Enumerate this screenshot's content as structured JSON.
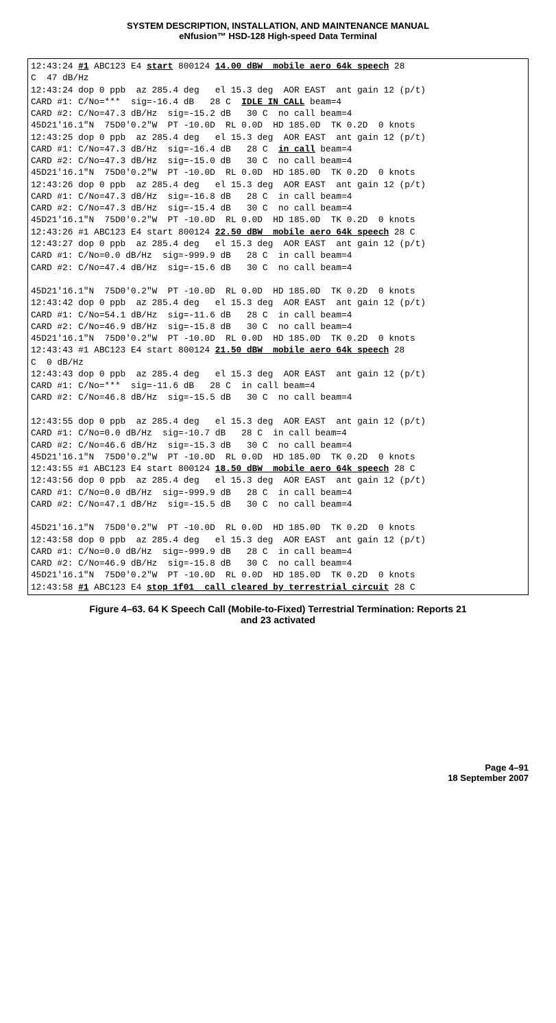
{
  "header": {
    "line1": "SYSTEM DESCRIPTION, INSTALLATION, AND MAINTENANCE MANUAL",
    "line2": "eNfusion™ HSD-128 High-speed Data Terminal"
  },
  "log": {
    "styling": {
      "font_family": "Courier New",
      "font_size_pt": 10,
      "border_color": "#000000",
      "bg_color": "#ffffff",
      "text_color": "#000000"
    },
    "lines": [
      {
        "segments": [
          {
            "t": "12:43:24 "
          },
          {
            "t": "#1",
            "style": "bu"
          },
          {
            "t": " ABC123 E4 "
          },
          {
            "t": "start",
            "style": "bu"
          },
          {
            "t": " 800124 "
          },
          {
            "t": "14.00 dBW  mobile aero 64k speech",
            "style": "bu"
          },
          {
            "t": " 28"
          }
        ]
      },
      {
        "segments": [
          {
            "t": "C  47 dB/Hz"
          }
        ]
      },
      {
        "segments": [
          {
            "t": "12:43:24 dop 0 ppb  az 285.4 deg   el 15.3 deg  AOR EAST  ant gain 12 (p/t)"
          }
        ]
      },
      {
        "segments": [
          {
            "t": "CARD #1: C/No=***  sig=-16.4 dB   28 C  "
          },
          {
            "t": "IDLE IN CALL",
            "style": "bu"
          },
          {
            "t": " beam=4"
          }
        ]
      },
      {
        "segments": [
          {
            "t": "CARD #2: C/No=47.3 dB/Hz  sig=-15.2 dB   30 C  no call beam=4"
          }
        ]
      },
      {
        "segments": [
          {
            "t": "45D21'16.1\"N  75D0'0.2\"W  PT -10.0D  RL 0.0D  HD 185.0D  TK 0.2D  0 knots"
          }
        ]
      },
      {
        "segments": [
          {
            "t": "12:43:25 dop 0 ppb  az 285.4 deg   el 15.3 deg  AOR EAST  ant gain 12 (p/t)"
          }
        ]
      },
      {
        "segments": [
          {
            "t": "CARD #1: C/No=47.3 dB/Hz  sig=-16.4 dB   28 C  "
          },
          {
            "t": "in call",
            "style": "bu"
          },
          {
            "t": " beam=4"
          }
        ]
      },
      {
        "segments": [
          {
            "t": "CARD #2: C/No=47.3 dB/Hz  sig=-15.0 dB   30 C  no call beam=4"
          }
        ]
      },
      {
        "segments": [
          {
            "t": "45D21'16.1\"N  75D0'0.2\"W  PT -10.0D  RL 0.0D  HD 185.0D  TK 0.2D  0 knots"
          }
        ]
      },
      {
        "segments": [
          {
            "t": "12:43:26 dop 0 ppb  az 285.4 deg   el 15.3 deg  AOR EAST  ant gain 12 (p/t)"
          }
        ]
      },
      {
        "segments": [
          {
            "t": "CARD #1: C/No=47.3 dB/Hz  sig=-16.8 dB   28 C  in call beam=4"
          }
        ]
      },
      {
        "segments": [
          {
            "t": "CARD #2: C/No=47.3 dB/Hz  sig=-15.4 dB   30 C  no call beam=4"
          }
        ]
      },
      {
        "segments": [
          {
            "t": "45D21'16.1\"N  75D0'0.2\"W  PT -10.0D  RL 0.0D  HD 185.0D  TK 0.2D  0 knots"
          }
        ]
      },
      {
        "segments": [
          {
            "t": "12:43:26 #1 ABC123 E4 start 800124 "
          },
          {
            "t": "22.50 dBW  mobile aero 64k speech",
            "style": "bu"
          },
          {
            "t": " 28 C"
          }
        ]
      },
      {
        "segments": [
          {
            "t": "12:43:27 dop 0 ppb  az 285.4 deg   el 15.3 deg  AOR EAST  ant gain 12 (p/t)"
          }
        ]
      },
      {
        "segments": [
          {
            "t": "CARD #1: C/No=0.0 dB/Hz  sig=-999.9 dB   28 C  in call beam=4"
          }
        ]
      },
      {
        "segments": [
          {
            "t": "CARD #2: C/No=47.4 dB/Hz  sig=-15.6 dB   30 C  no call beam=4"
          }
        ]
      },
      {
        "segments": [
          {
            "t": ""
          }
        ]
      },
      {
        "segments": [
          {
            "t": "45D21'16.1\"N  75D0'0.2\"W  PT -10.0D  RL 0.0D  HD 185.0D  TK 0.2D  0 knots"
          }
        ]
      },
      {
        "segments": [
          {
            "t": "12:43:42 dop 0 ppb  az 285.4 deg   el 15.3 deg  AOR EAST  ant gain 12 (p/t)"
          }
        ]
      },
      {
        "segments": [
          {
            "t": "CARD #1: C/No=54.1 dB/Hz  sig=-11.6 dB   28 C  in call beam=4"
          }
        ]
      },
      {
        "segments": [
          {
            "t": "CARD #2: C/No=46.9 dB/Hz  sig=-15.8 dB   30 C  no call beam=4"
          }
        ]
      },
      {
        "segments": [
          {
            "t": "45D21'16.1\"N  75D0'0.2\"W  PT -10.0D  RL 0.0D  HD 185.0D  TK 0.2D  0 knots"
          }
        ]
      },
      {
        "segments": [
          {
            "t": "12:43:43 #1 ABC123 E4 start 800124 "
          },
          {
            "t": "21.50 dBW  mobile aero 64k speech",
            "style": "bu"
          },
          {
            "t": " 28"
          }
        ]
      },
      {
        "segments": [
          {
            "t": "C  0 dB/Hz"
          }
        ]
      },
      {
        "segments": [
          {
            "t": "12:43:43 dop 0 ppb  az 285.4 deg   el 15.3 deg  AOR EAST  ant gain 12 (p/t)"
          }
        ]
      },
      {
        "segments": [
          {
            "t": "CARD #1: C/No=***  sig=-11.6 dB   28 C  in call beam=4"
          }
        ]
      },
      {
        "segments": [
          {
            "t": "CARD #2: C/No=46.8 dB/Hz  sig=-15.5 dB   30 C  no call beam=4"
          }
        ]
      },
      {
        "segments": [
          {
            "t": ""
          }
        ]
      },
      {
        "segments": [
          {
            "t": "12:43:55 dop 0 ppb  az 285.4 deg   el 15.3 deg  AOR EAST  ant gain 12 (p/t)"
          }
        ]
      },
      {
        "segments": [
          {
            "t": "CARD #1: C/No=0.0 dB/Hz  sig=-10.7 dB   28 C  in call beam=4"
          }
        ]
      },
      {
        "segments": [
          {
            "t": "CARD #2: C/No=46.6 dB/Hz  sig=-15.3 dB   30 C  no call beam=4"
          }
        ]
      },
      {
        "segments": [
          {
            "t": "45D21'16.1\"N  75D0'0.2\"W  PT -10.0D  RL 0.0D  HD 185.0D  TK 0.2D  0 knots"
          }
        ]
      },
      {
        "segments": [
          {
            "t": "12:43:55 #1 ABC123 E4 start 800124 "
          },
          {
            "t": "18.50 dBW  mobile aero 64k speech",
            "style": "bu"
          },
          {
            "t": " 28 C"
          }
        ]
      },
      {
        "segments": [
          {
            "t": "12:43:56 dop 0 ppb  az 285.4 deg   el 15.3 deg  AOR EAST  ant gain 12 (p/t)"
          }
        ]
      },
      {
        "segments": [
          {
            "t": "CARD #1: C/No=0.0 dB/Hz  sig=-999.9 dB   28 C  in call beam=4"
          }
        ]
      },
      {
        "segments": [
          {
            "t": "CARD #2: C/No=47.1 dB/Hz  sig=-15.5 dB   30 C  no call beam=4"
          }
        ]
      },
      {
        "segments": [
          {
            "t": ""
          }
        ]
      },
      {
        "segments": [
          {
            "t": "45D21'16.1\"N  75D0'0.2\"W  PT -10.0D  RL 0.0D  HD 185.0D  TK 0.2D  0 knots"
          }
        ]
      },
      {
        "segments": [
          {
            "t": "12:43:58 dop 0 ppb  az 285.4 deg   el 15.3 deg  AOR EAST  ant gain 12 (p/t)"
          }
        ]
      },
      {
        "segments": [
          {
            "t": "CARD #1: C/No=0.0 dB/Hz  sig=-999.9 dB   28 C  in call beam=4"
          }
        ]
      },
      {
        "segments": [
          {
            "t": "CARD #2: C/No=46.9 dB/Hz  sig=-15.8 dB   30 C  no call beam=4"
          }
        ]
      },
      {
        "segments": [
          {
            "t": "45D21'16.1\"N  75D0'0.2\"W  PT -10.0D  RL 0.0D  HD 185.0D  TK 0.2D  0 knots"
          }
        ]
      },
      {
        "segments": [
          {
            "t": "12:43:58 "
          },
          {
            "t": "#1",
            "style": "bu"
          },
          {
            "t": " ABC123 E4 "
          },
          {
            "t": "stop 1f01  call cleared by terrestrial circuit",
            "style": "bu"
          },
          {
            "t": " 28 C"
          }
        ]
      }
    ]
  },
  "caption": {
    "line1": "Figure 4–63. 64 K Speech Call (Mobile-to-Fixed) Terrestrial Termination: Reports 21",
    "line2": "and 23 activated"
  },
  "footer": {
    "page": "Page 4–91",
    "date": "18 September 2007"
  }
}
